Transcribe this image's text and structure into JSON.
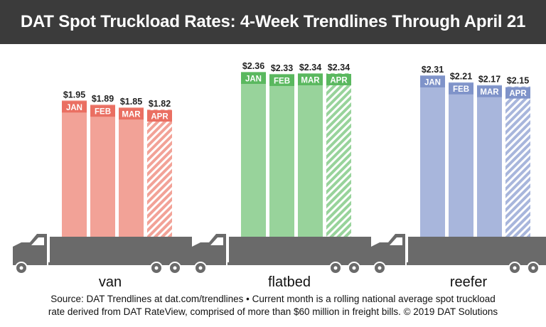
{
  "title": "DAT Spot Truckload Rates: 4-Week Trendlines Through April 21",
  "footnote": {
    "line1": "Source: DAT Trendlines at dat.com/trendlines • Current month is a rolling national average spot truckload",
    "line2": "rate derived from DAT RateView, comprised of more than $60 million in freight bills. © 2019 DAT Solutions"
  },
  "colors": {
    "van_bar": "#f2a297",
    "van_label": "#ea6f62",
    "flatbed_bar": "#98d39b",
    "flatbed_label": "#5ab85f",
    "reefer_bar": "#a8b6dc",
    "reefer_label": "#7f93c9",
    "truck": "#6a6a6a",
    "title_bg": "#3b3b3b"
  },
  "chart_data": [
    {
      "type": "bar",
      "name": "van",
      "categories": [
        "JAN",
        "FEB",
        "MAR",
        "APR"
      ],
      "values": [
        1.95,
        1.89,
        1.85,
        1.82
      ],
      "value_labels": [
        "$1.95",
        "$1.89",
        "$1.85",
        "$1.82"
      ],
      "hatched": [
        false,
        false,
        false,
        true
      ]
    },
    {
      "type": "bar",
      "name": "flatbed",
      "categories": [
        "JAN",
        "FEB",
        "MAR",
        "APR"
      ],
      "values": [
        2.36,
        2.33,
        2.34,
        2.34
      ],
      "value_labels": [
        "$2.36",
        "$2.33",
        "$2.34",
        "$2.34"
      ],
      "hatched": [
        false,
        false,
        false,
        true
      ]
    },
    {
      "type": "bar",
      "name": "reefer",
      "categories": [
        "JAN",
        "FEB",
        "MAR",
        "APR"
      ],
      "values": [
        2.31,
        2.21,
        2.17,
        2.15
      ],
      "value_labels": [
        "$2.31",
        "$2.21",
        "$2.17",
        "$2.15"
      ],
      "hatched": [
        false,
        false,
        false,
        true
      ]
    }
  ]
}
